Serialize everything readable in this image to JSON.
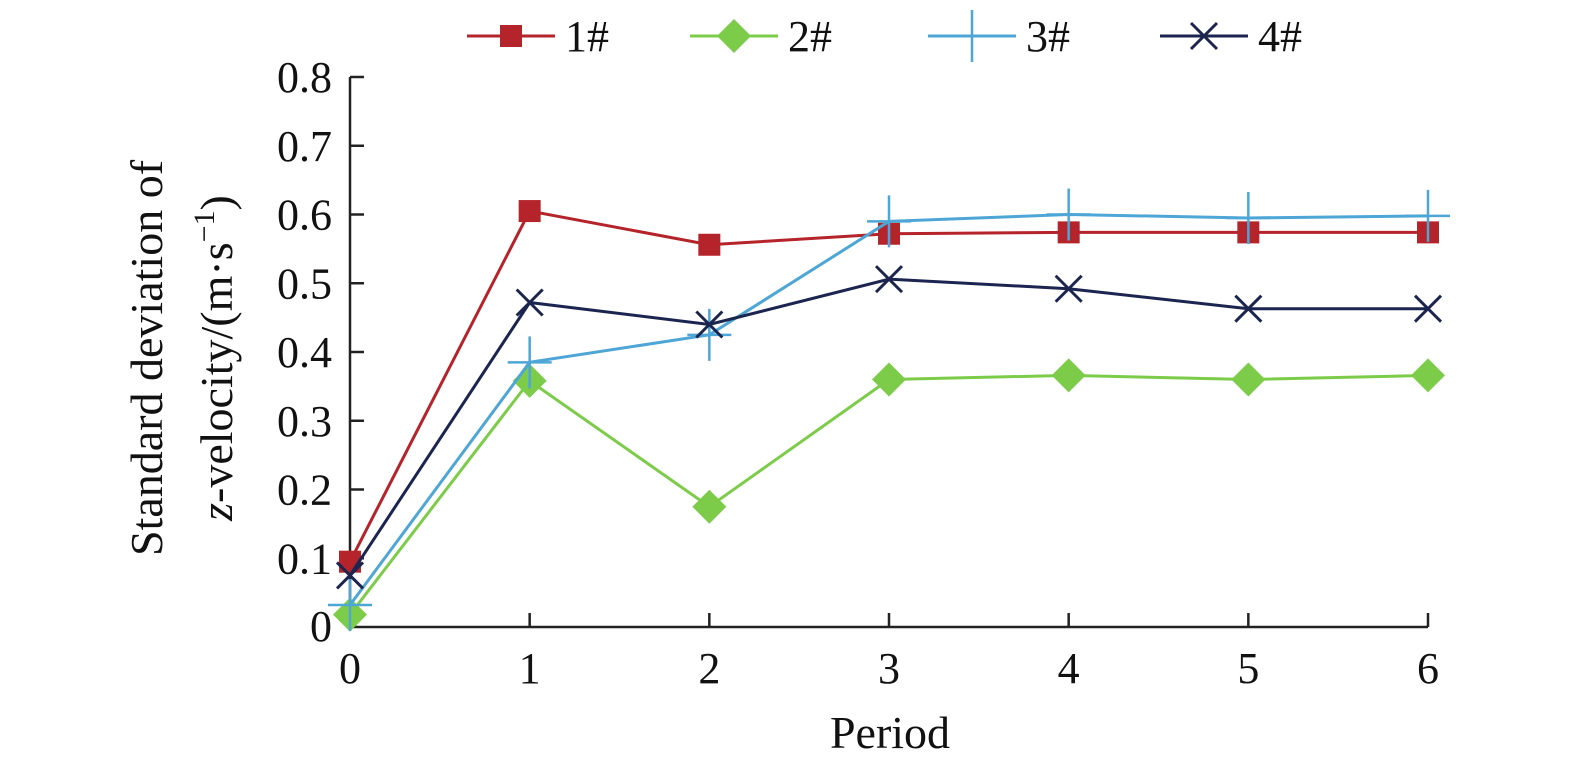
{
  "chart_data": {
    "type": "line",
    "title": "",
    "xlabel": "Period",
    "ylabel": {
      "line1": "Standard deviation of",
      "line2_var": "z",
      "line2_rest": "-velocity/(m·s",
      "line2_exp": "−1",
      "line2_close": ")"
    },
    "x": [
      0,
      1,
      2,
      3,
      4,
      5,
      6
    ],
    "xlim": [
      0,
      6
    ],
    "ylim": [
      0,
      0.8
    ],
    "x_ticks": [
      "0",
      "1",
      "2",
      "3",
      "4",
      "5",
      "6"
    ],
    "y_ticks": [
      "0",
      "0.1",
      "0.2",
      "0.3",
      "0.4",
      "0.5",
      "0.6",
      "0.7",
      "0.8"
    ],
    "y_tick_values": [
      0,
      0.1,
      0.2,
      0.3,
      0.4,
      0.5,
      0.6,
      0.7,
      0.8
    ],
    "grid": false,
    "legend_position": "top",
    "series": [
      {
        "name": "1#",
        "marker": "square",
        "color": "#b5232b",
        "values": [
          0.095,
          0.605,
          0.556,
          0.572,
          0.574,
          0.574,
          0.574
        ]
      },
      {
        "name": "2#",
        "marker": "diamond",
        "color": "#7ccc4a",
        "values": [
          0.018,
          0.358,
          0.175,
          0.36,
          0.366,
          0.36,
          0.366
        ]
      },
      {
        "name": "3#",
        "marker": "plus",
        "color": "#4ea6d6",
        "values": [
          0.032,
          0.385,
          0.425,
          0.59,
          0.6,
          0.595,
          0.598
        ]
      },
      {
        "name": "4#",
        "marker": "x",
        "color": "#1c2550",
        "values": [
          0.075,
          0.472,
          0.44,
          0.506,
          0.492,
          0.463,
          0.463
        ]
      }
    ]
  }
}
